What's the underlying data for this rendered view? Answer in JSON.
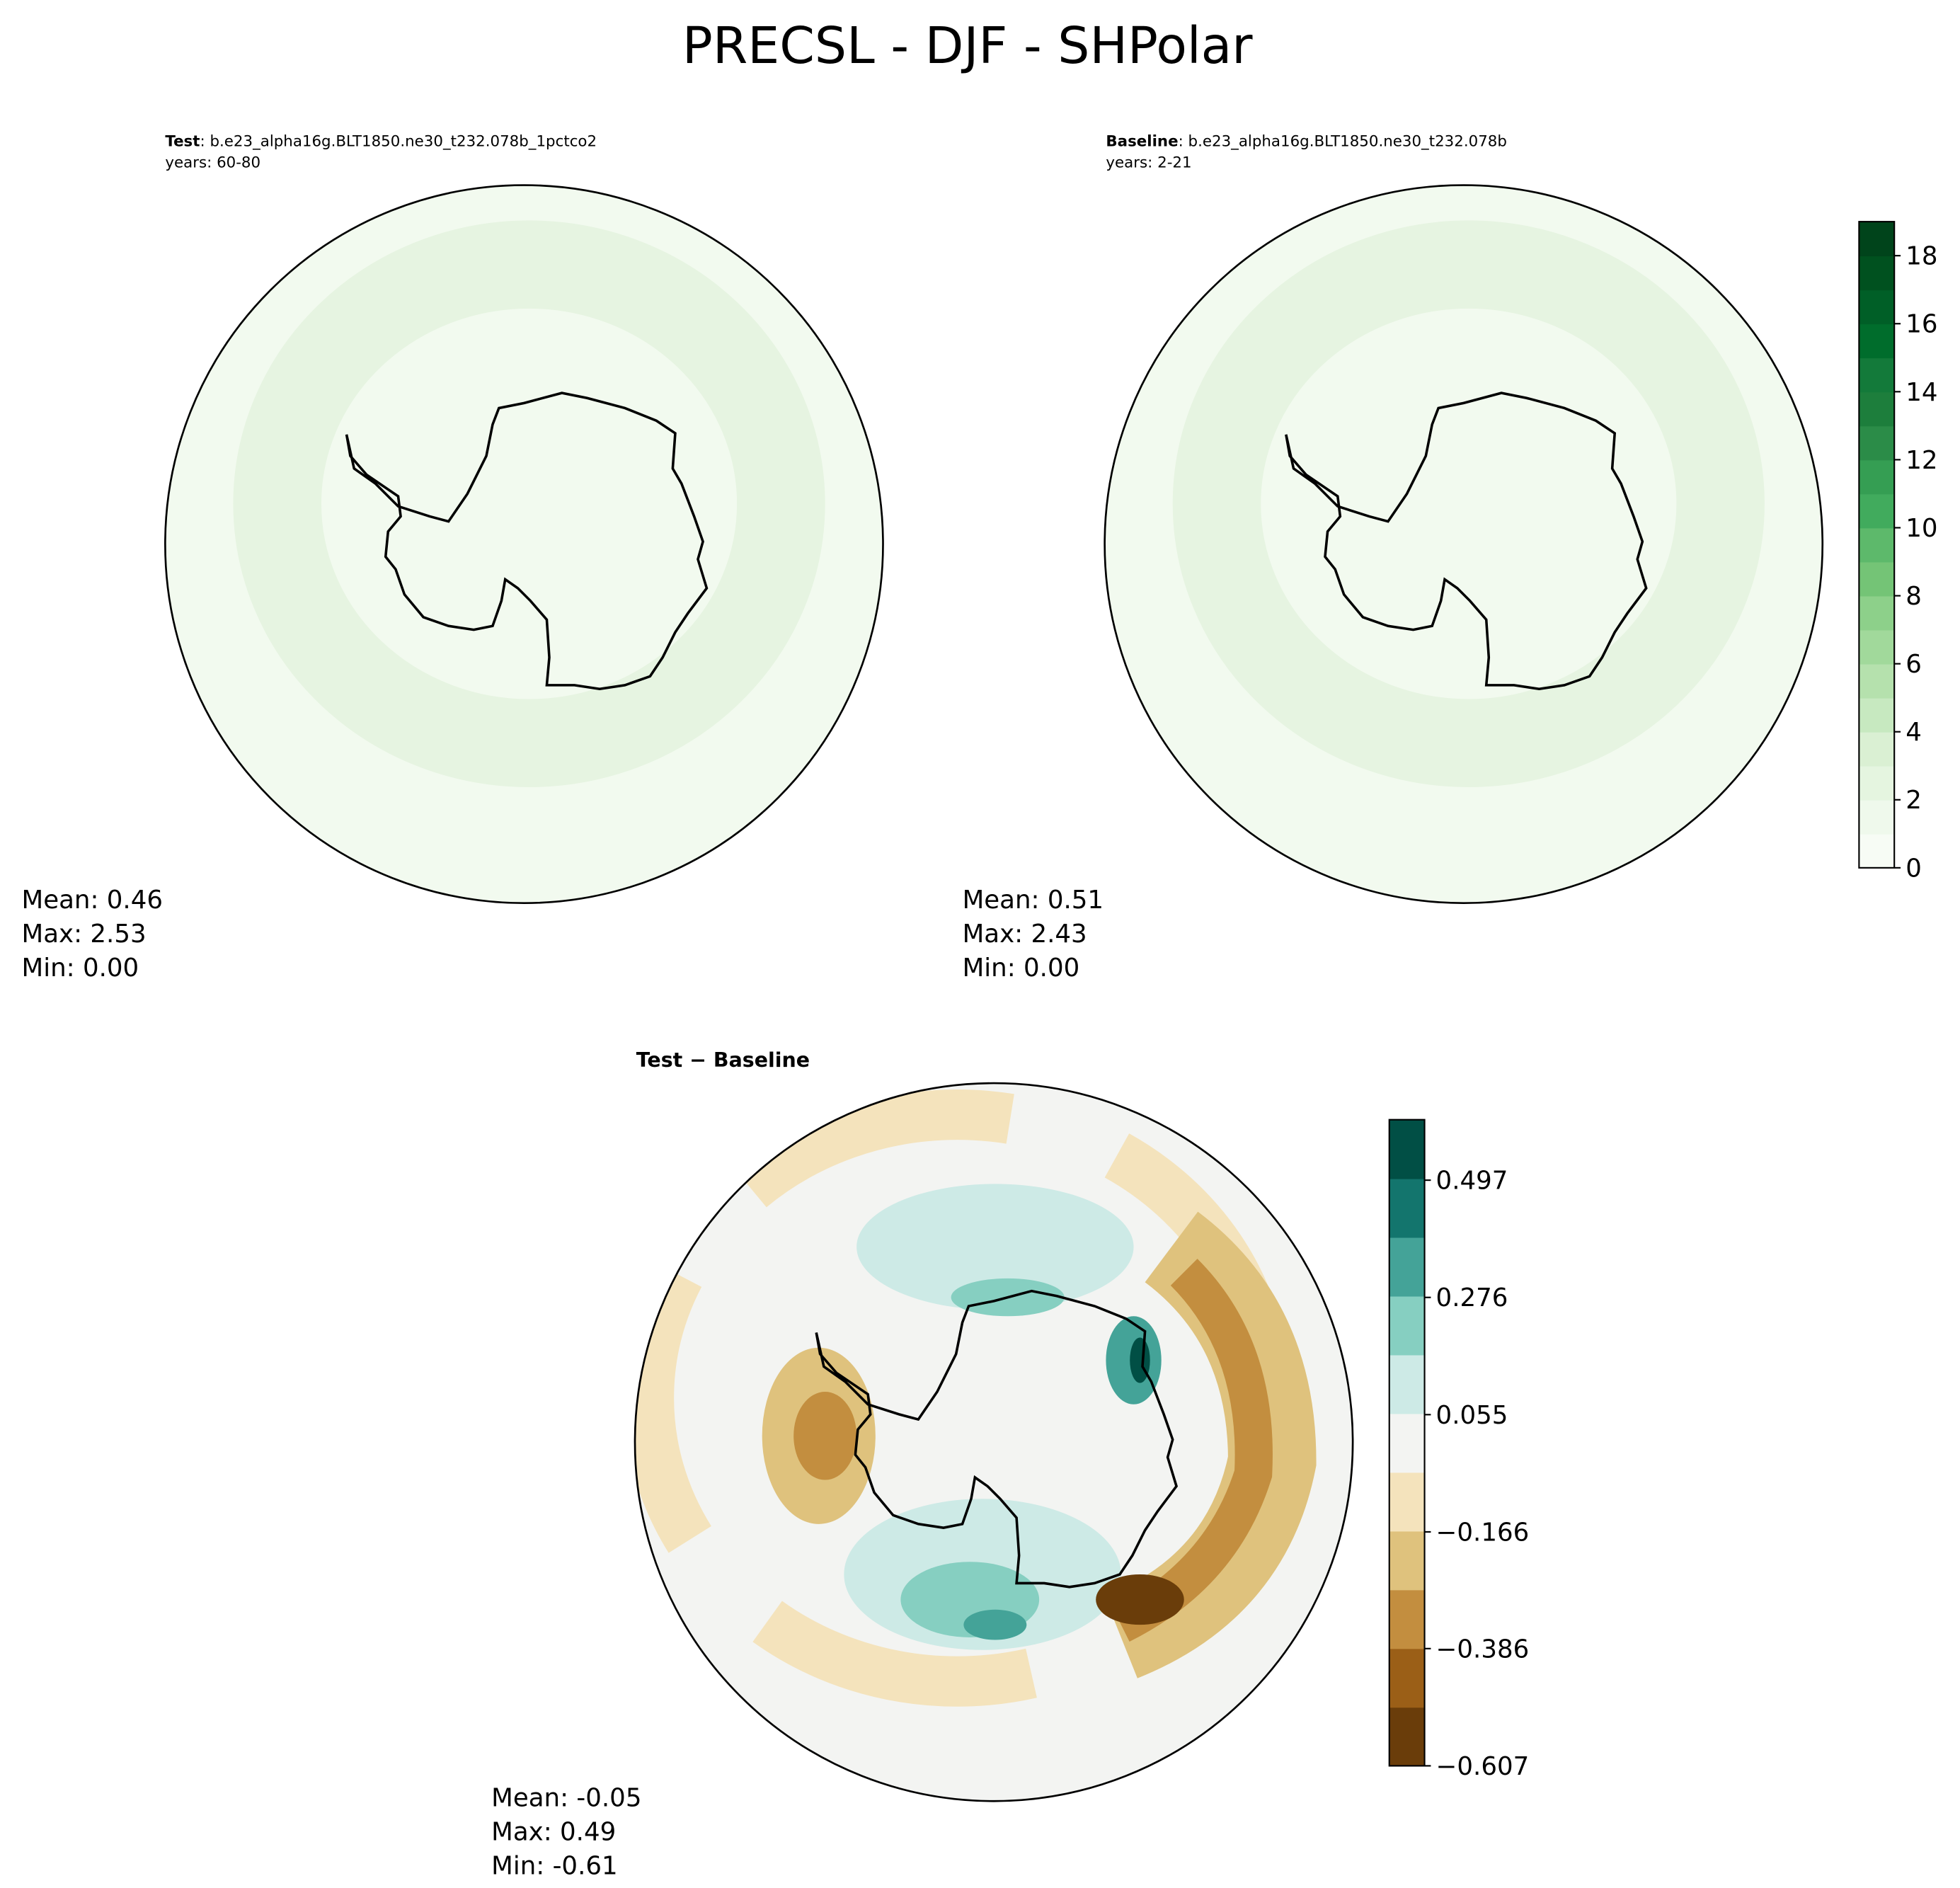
{
  "title": "PRECSL - DJF - SHPolar",
  "panels": [
    {
      "name": "Test",
      "case": ": b.e23_alpha16g.BLT1850.ne30_t232.078b_1pctco2",
      "years": "years: 60-80",
      "stats": [
        "Mean:  0.46",
        "Max:  2.53",
        "Min:  0.00"
      ]
    },
    {
      "name": "Baseline",
      "case": ": b.e23_alpha16g.BLT1850.ne30_t232.078b",
      "years": "years: 2-21",
      "stats": [
        "Mean:  0.51",
        "Max:  2.43",
        "Min:  0.00"
      ]
    },
    {
      "name": "Test − Baseline",
      "stats": [
        "Mean: -0.05",
        "Max:  0.49",
        "Min: -0.61"
      ]
    }
  ],
  "colorbars": [
    {
      "lim": [
        0,
        19
      ],
      "ticks": [
        0,
        2,
        4,
        6,
        8,
        10,
        12,
        14,
        16,
        18
      ],
      "colors": [
        "#f7fcf5",
        "#eff9ec",
        "#e5f5e0",
        "#daf0d3",
        "#c7e9c0",
        "#b5e1ad",
        "#a1d99b",
        "#8dd08a",
        "#74c476",
        "#5db96b",
        "#41ab5d",
        "#359e53",
        "#2b8c48",
        "#1d7e3c",
        "#137a3a",
        "#006d2c",
        "#005f27",
        "#00511f",
        "#00441b"
      ]
    },
    {
      "lim": [
        -0.607,
        0.611
      ],
      "ticks": [
        {
          "value": -0.607,
          "label": "−0.607"
        },
        {
          "value": -0.386,
          "label": "−0.386"
        },
        {
          "value": -0.166,
          "label": "−0.166"
        },
        0.055,
        0.276,
        0.497
      ],
      "colors": [
        "#6a3d0a",
        "#9b5f17",
        "#c38e3f",
        "#dfc27d",
        "#f4e3bc",
        "#f3f4f2",
        "#cdeae6",
        "#86cfc1",
        "#44a398",
        "#13756d",
        "#014f45"
      ]
    }
  ]
}
